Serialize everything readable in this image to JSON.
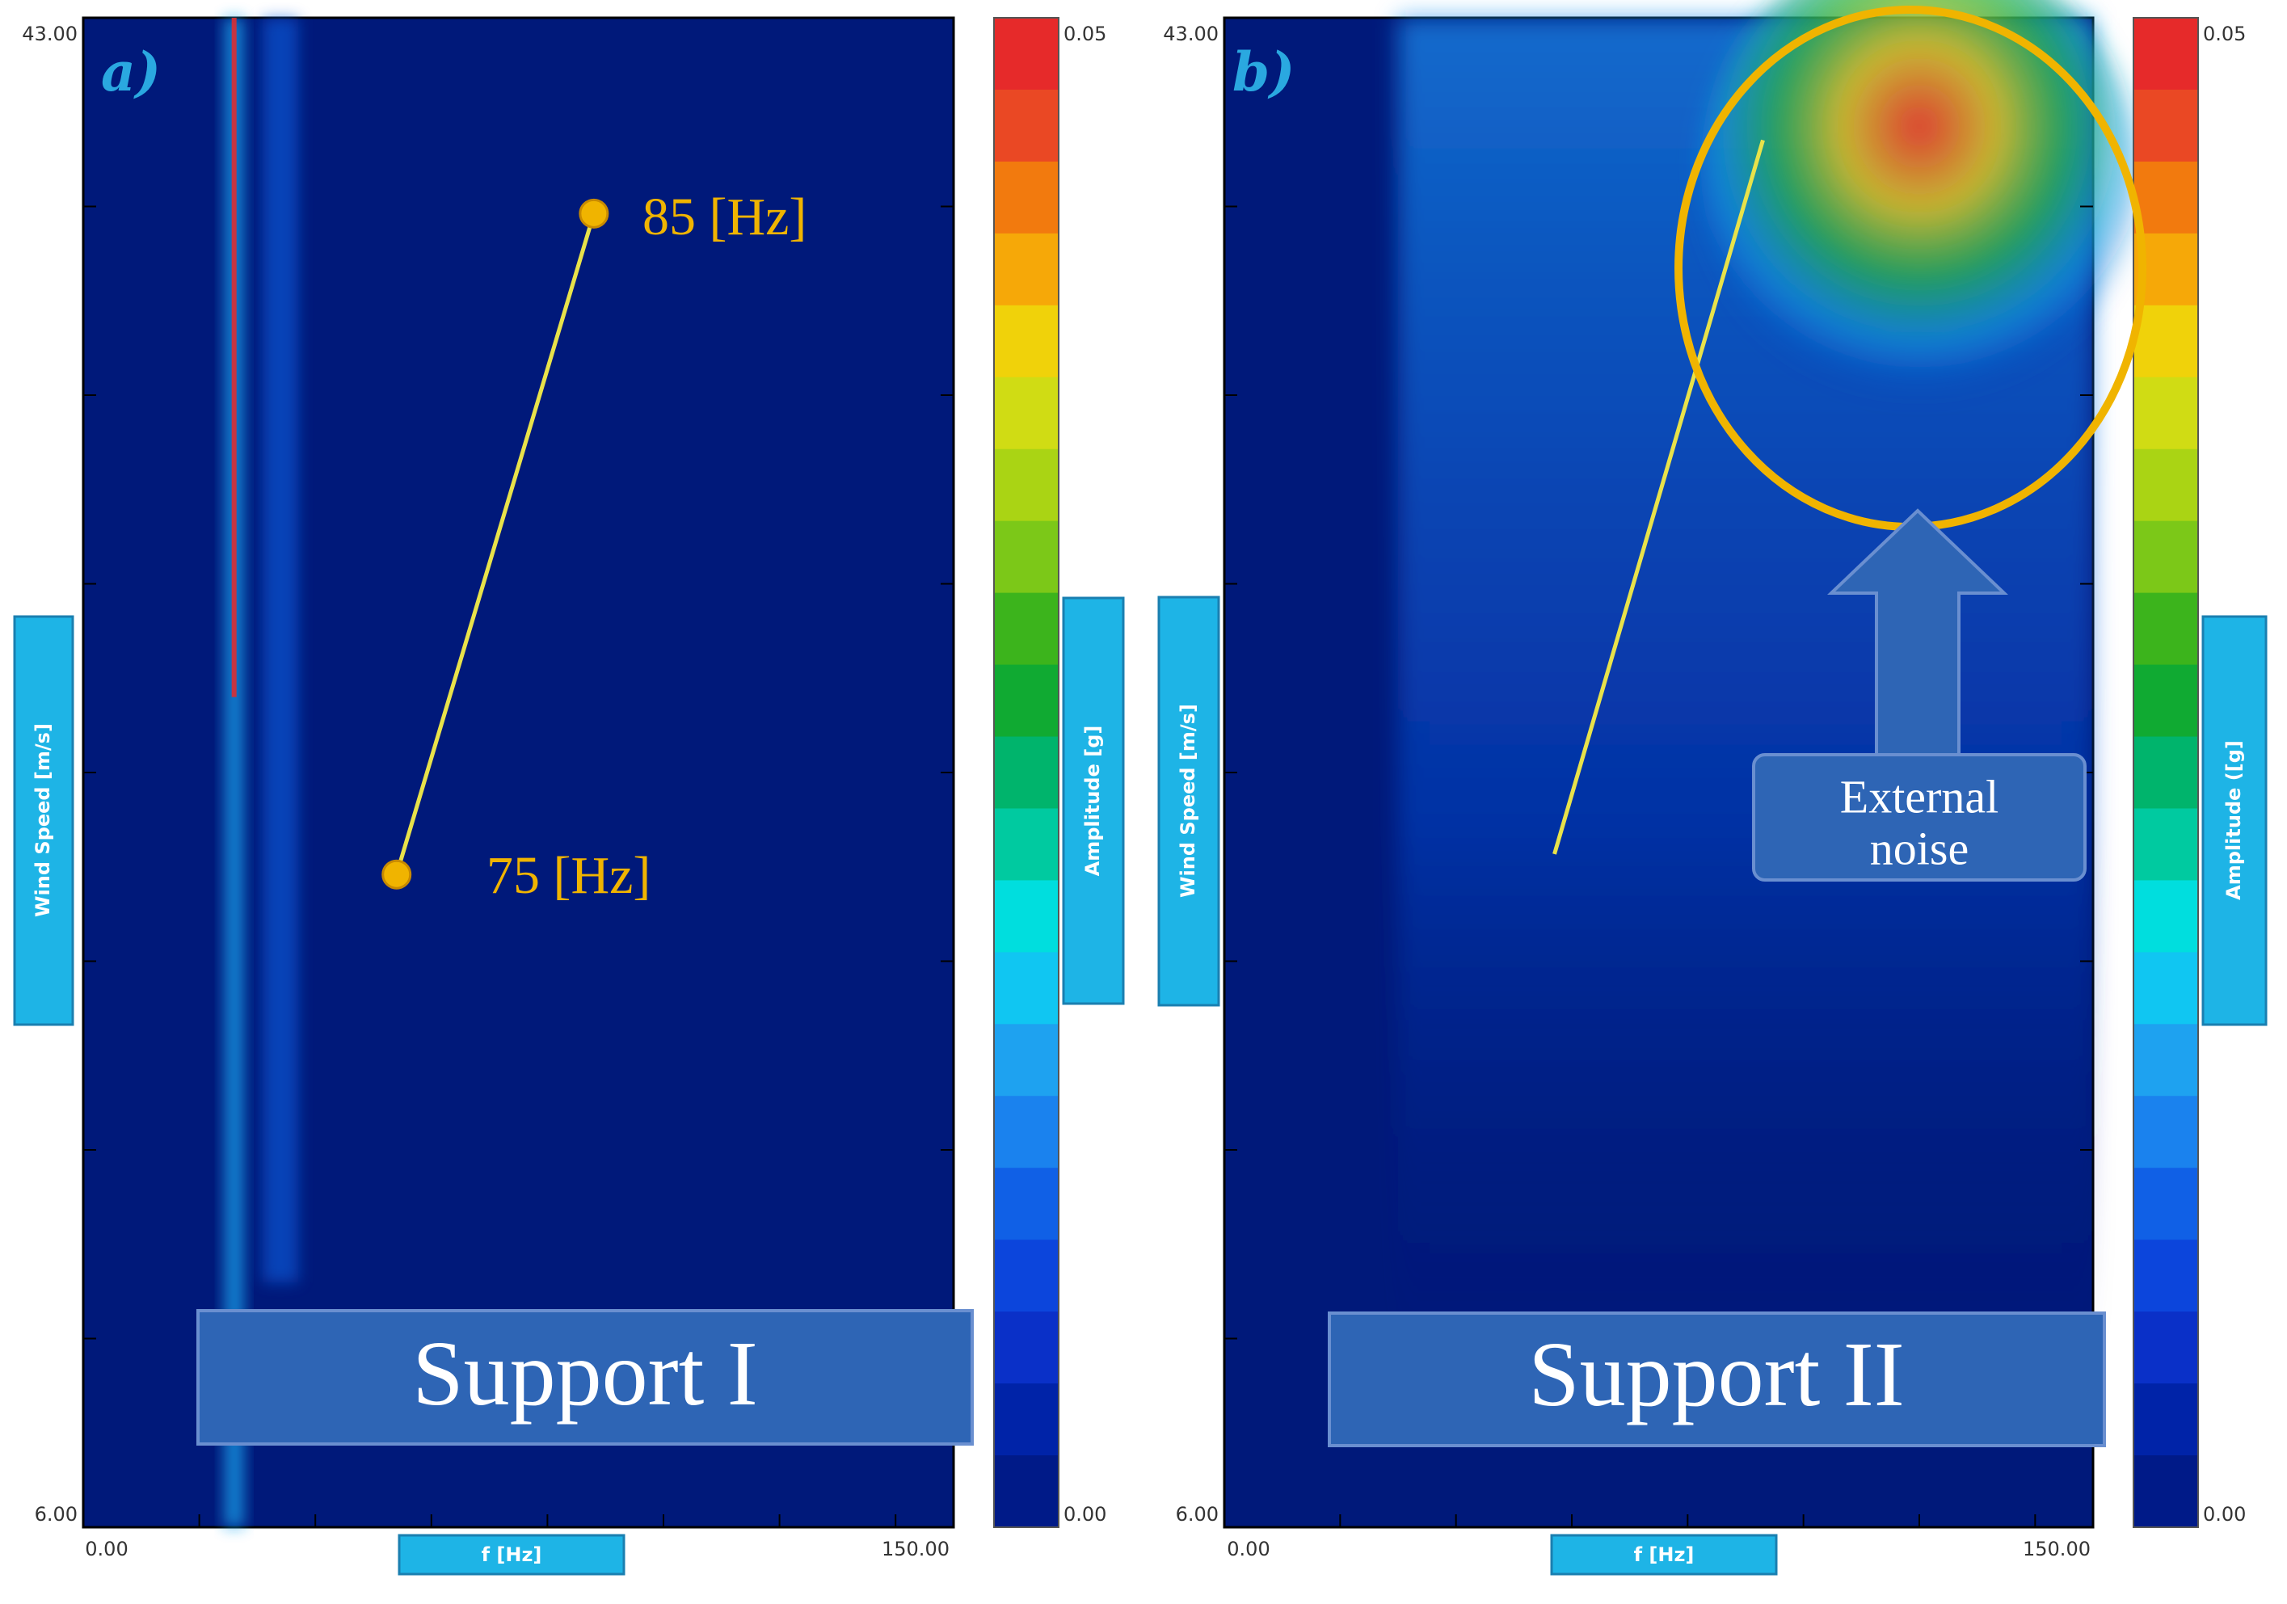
{
  "chart_data": [
    {
      "type": "heatmap",
      "panel_label": "a)",
      "title": "Support I",
      "xlabel": "f [Hz]",
      "ylabel": "Wind Speed [m/s]",
      "xlim": [
        0.0,
        150.0
      ],
      "ylim": [
        6.0,
        43.0
      ],
      "x_tick_labels": [
        "0.00",
        "150.00"
      ],
      "y_tick_labels": [
        "43.00",
        "6.00"
      ],
      "colorbar": {
        "label": "Amplitude [g]",
        "range": [
          0.0,
          0.05
        ],
        "tick_labels": [
          "0.05",
          "0.00"
        ]
      },
      "features": [
        {
          "f": 26,
          "wind_from": 6,
          "wind_to": 43,
          "peak_amplitude": 0.05
        },
        {
          "f": 34,
          "wind_from": 12,
          "wind_to": 43,
          "peak_amplitude": 0.02
        }
      ],
      "annotation_line": {
        "start": {
          "f": 54,
          "wind": 22,
          "label": "75 [Hz]"
        },
        "end": {
          "f": 88,
          "wind": 38.2,
          "label": "85 [Hz]"
        }
      }
    },
    {
      "type": "heatmap",
      "panel_label": "b)",
      "title": "Support II",
      "xlabel": "f [Hz]",
      "ylabel": "Wind Speed [m/s]",
      "xlim": [
        0.0,
        150.0
      ],
      "ylim": [
        6.0,
        43.0
      ],
      "x_tick_labels": [
        "0.00",
        "150.00"
      ],
      "y_tick_labels": [
        "43.00",
        "6.00"
      ],
      "colorbar": {
        "label": "Amplitude ([g]",
        "range": [
          0.0,
          0.05
        ],
        "tick_labels": [
          "0.05",
          "0.00"
        ]
      },
      "features": [
        {
          "f": 95,
          "wind_from": 10,
          "wind_to": 43,
          "peak_amplitude": 0.015
        },
        {
          "f": 120,
          "wind_from": 34,
          "wind_to": 43,
          "peak_amplitude": 0.05
        }
      ],
      "annotation_line": {
        "start": {
          "f": 57,
          "wind": 22.5
        },
        "end": {
          "f": 93,
          "wind": 40
        }
      },
      "callout": "External noise",
      "callout_lines": [
        "External",
        "noise"
      ]
    }
  ],
  "colors": {
    "background_low": "#00197a",
    "annotation": "#f0b400",
    "line": "#e8e24a",
    "axis_box": "#1eb4e6",
    "title_box": "#2e65b5",
    "colorbar_steps": [
      "#001a88",
      "#0023a8",
      "#0a30c8",
      "#0c45dc",
      "#1060e6",
      "#1a82ee",
      "#1ea2f0",
      "#10c6f2",
      "#00dede",
      "#00caa0",
      "#00b46c",
      "#10aa32",
      "#3cb41c",
      "#7cc818",
      "#aad414",
      "#d0dc14",
      "#f0d20a",
      "#f6a808",
      "#f27a0e",
      "#ea4824",
      "#e62a2a"
    ]
  }
}
